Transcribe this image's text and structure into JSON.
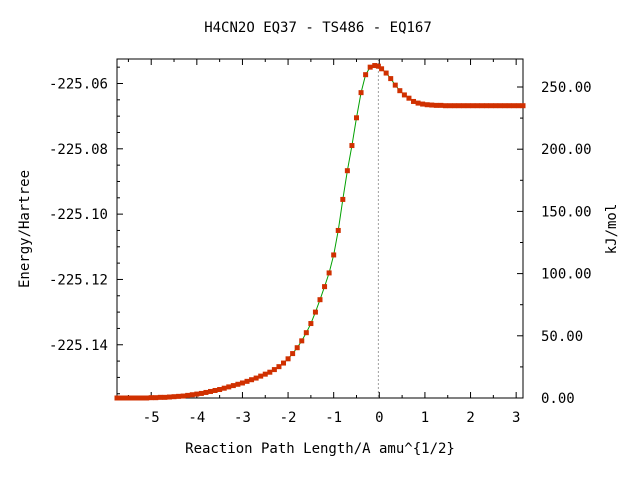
{
  "chart_data": {
    "type": "line",
    "title": "H4CN2O   EQ37 - TS486 - EQ167",
    "xlabel": "Reaction Path Length/A amu^{1/2}",
    "ylabel": "Energy/Hartree",
    "y2label": "kJ/mol",
    "xlim": [
      -5.75,
      3.15
    ],
    "ylim": [
      -225.1563,
      -225.0525
    ],
    "y2lim": [
      0,
      272.5
    ],
    "x_ticks": [
      -5,
      -4,
      -3,
      -2,
      -1,
      0,
      1,
      2,
      3
    ],
    "x_tick_labels": [
      "-5",
      "-4",
      "-3",
      "-2",
      "-1",
      "0",
      "1",
      "2",
      "3"
    ],
    "y_ticks": [
      -225.06,
      -225.08,
      -225.1,
      -225.12,
      -225.14
    ],
    "y_tick_labels": [
      "-225.06",
      "-225.08",
      "-225.10",
      "-225.12",
      "-225.14"
    ],
    "y2_ticks": [
      0,
      50,
      100,
      150,
      200,
      250
    ],
    "y2_tick_labels": [
      "0.00",
      "50.00",
      "100.00",
      "150.00",
      "200.00",
      "250.00"
    ],
    "ts_marker_x": -0.02,
    "grid": false,
    "legend": "none",
    "colors": {
      "line": "#00a000",
      "points": "#d03000",
      "ts_line": "#a0a0a0",
      "axes": "#000000"
    },
    "series": [
      {
        "x": [
          -5.75,
          -5.7,
          -5.6,
          -5.5,
          -5.4,
          -5.3,
          -5.2,
          -5.1,
          -5.0,
          -4.9,
          -4.8,
          -4.7,
          -4.6,
          -4.5,
          -4.4,
          -4.3,
          -4.2,
          -4.1,
          -4.0,
          -3.9,
          -3.8,
          -3.7,
          -3.6,
          -3.5,
          -3.4,
          -3.3,
          -3.2,
          -3.1,
          -3.0,
          -2.9,
          -2.8,
          -2.7,
          -2.6,
          -2.5,
          -2.4,
          -2.3,
          -2.2,
          -2.1,
          -2.0,
          -1.9,
          -1.8,
          -1.7,
          -1.6,
          -1.5,
          -1.4,
          -1.3,
          -1.2,
          -1.1,
          -1.0,
          -0.9,
          -0.8,
          -0.7,
          -0.6,
          -0.5,
          -0.4,
          -0.3,
          -0.2,
          -0.1,
          -0.02,
          0.05,
          0.15,
          0.25,
          0.35,
          0.45,
          0.55,
          0.65,
          0.75,
          0.85,
          0.95,
          1.05,
          1.15,
          1.25,
          1.35,
          1.45,
          1.55,
          1.65,
          1.75,
          1.85,
          1.95,
          2.05,
          2.15,
          2.25,
          2.35,
          2.45,
          2.55,
          2.65,
          2.75,
          2.85,
          2.95,
          3.05,
          3.15
        ],
        "y": [
          -225.1563,
          -225.1563,
          -225.1563,
          -225.1563,
          -225.1563,
          -225.1563,
          -225.1563,
          -225.1563,
          -225.1562,
          -225.1562,
          -225.1561,
          -225.1561,
          -225.156,
          -225.1559,
          -225.1558,
          -225.1557,
          -225.1555,
          -225.1553,
          -225.1551,
          -225.1549,
          -225.1546,
          -225.1543,
          -225.154,
          -225.1537,
          -225.1533,
          -225.1529,
          -225.1525,
          -225.1521,
          -225.1517,
          -225.1512,
          -225.1507,
          -225.1502,
          -225.1496,
          -225.149,
          -225.1484,
          -225.1476,
          -225.1467,
          -225.1456,
          -225.1443,
          -225.1427,
          -225.1409,
          -225.1388,
          -225.1363,
          -225.1335,
          -225.13,
          -225.1262,
          -225.1222,
          -225.118,
          -225.1125,
          -225.105,
          -225.0955,
          -225.0867,
          -225.079,
          -225.0705,
          -225.0628,
          -225.0573,
          -225.055,
          -225.0545,
          -225.0547,
          -225.0555,
          -225.0568,
          -225.0585,
          -225.0605,
          -225.0622,
          -225.0635,
          -225.0645,
          -225.0655,
          -225.066,
          -225.0663,
          -225.0665,
          -225.0666,
          -225.0667,
          -225.0667,
          -225.0668,
          -225.0668,
          -225.0668,
          -225.0668,
          -225.0668,
          -225.0668,
          -225.0668,
          -225.0668,
          -225.0668,
          -225.0668,
          -225.0668,
          -225.0668,
          -225.0668,
          -225.0668,
          -225.0668,
          -225.0668,
          -225.0668,
          -225.0668
        ]
      }
    ]
  }
}
